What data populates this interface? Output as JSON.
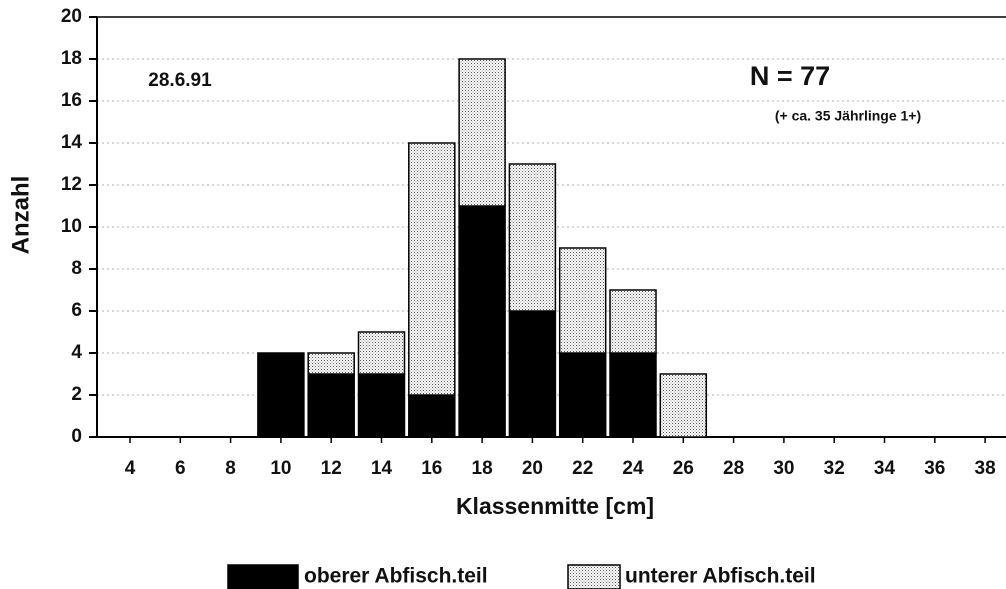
{
  "chart_data": {
    "type": "stacked_bar",
    "categories": [
      "4",
      "6",
      "8",
      "10",
      "12",
      "14",
      "16",
      "18",
      "20",
      "22",
      "24",
      "26",
      "28",
      "30",
      "32",
      "34",
      "36",
      "38"
    ],
    "series": [
      {
        "name": "oberer Abfisch.teil",
        "color": "#000000",
        "values": [
          0,
          0,
          0,
          4,
          3,
          3,
          2,
          11,
          6,
          4,
          4,
          0,
          0,
          0,
          0,
          0,
          0,
          0
        ]
      },
      {
        "name": "unterer Abfisch.teil",
        "color": "#d6d6d6",
        "values": [
          0,
          0,
          0,
          0,
          1,
          2,
          12,
          7,
          7,
          5,
          3,
          3,
          0,
          0,
          0,
          0,
          0,
          0
        ]
      }
    ],
    "ylim": [
      0,
      20
    ],
    "yticks": [
      0,
      2,
      4,
      6,
      8,
      10,
      12,
      14,
      16,
      18,
      20
    ],
    "ylabel": "Anzahl",
    "xlabel": "Klassenmitte [cm]",
    "annotations": [
      "28.6.91",
      "N = 77",
      "(+ ca. 35 Jährlinge 1+)"
    ],
    "grid": true,
    "legend": "bottom"
  }
}
